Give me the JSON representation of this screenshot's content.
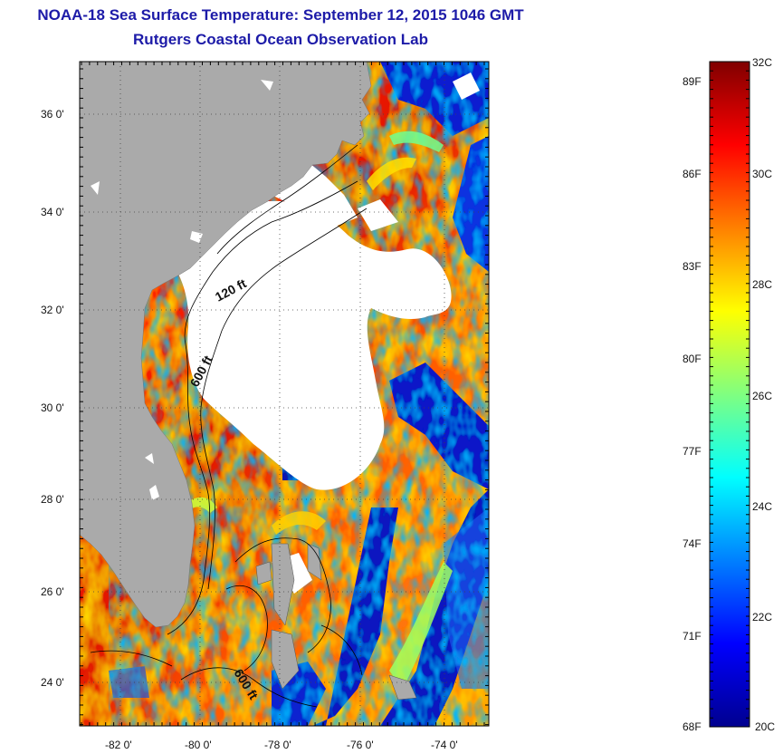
{
  "header": {
    "title": "NOAA-18 Sea Surface Temperature:  September 12, 2015 1046 GMT",
    "subtitle": "Rutgers Coastal Ocean Observation Lab"
  },
  "map": {
    "region": "US Southeast coast and Bahamas",
    "lon_range": [
      -83,
      -73
    ],
    "lat_range": [
      23,
      37
    ],
    "lat_ticks": [
      {
        "value": 36,
        "label": "36 0'"
      },
      {
        "value": 34,
        "label": "34 0'"
      },
      {
        "value": 32,
        "label": "32 0'"
      },
      {
        "value": 30,
        "label": "30 0'"
      },
      {
        "value": 28,
        "label": "28 0'"
      },
      {
        "value": 26,
        "label": "26 0'"
      },
      {
        "value": 24,
        "label": "24 0'"
      }
    ],
    "lon_ticks": [
      {
        "value": -82,
        "label": "-82 0'"
      },
      {
        "value": -80,
        "label": "-80 0'"
      },
      {
        "value": -78,
        "label": "-78 0'"
      },
      {
        "value": -76,
        "label": "-76 0'"
      },
      {
        "value": -74,
        "label": "-74 0'"
      }
    ],
    "grid": "dotted",
    "contour_labels": [
      {
        "text": "120 ft",
        "rotate": -28
      },
      {
        "text": "600 ft",
        "rotate": -62
      },
      {
        "text": "600 ft",
        "rotate": 58
      }
    ],
    "colors": {
      "land": "#aaaaaa",
      "cloud": "#ffffff",
      "frame": "#000000"
    }
  },
  "colorbar": {
    "min_c": 20,
    "max_c": 32,
    "colors": [
      "#00008f",
      "#0000ff",
      "#0080ff",
      "#00ffff",
      "#80ff80",
      "#ffff00",
      "#ff8000",
      "#ff0000",
      "#800000"
    ],
    "celsius_ticks": [
      {
        "value": 32,
        "label": "32C"
      },
      {
        "value": 30,
        "label": "30C"
      },
      {
        "value": 28,
        "label": "28C"
      },
      {
        "value": 26,
        "label": "26C"
      },
      {
        "value": 24,
        "label": "24C"
      },
      {
        "value": 22,
        "label": "22C"
      },
      {
        "value": 20,
        "label": "20C"
      }
    ],
    "fahrenheit_ticks": [
      {
        "value": 89,
        "label": "89F"
      },
      {
        "value": 86,
        "label": "86F"
      },
      {
        "value": 83,
        "label": "83F"
      },
      {
        "value": 80,
        "label": "80F"
      },
      {
        "value": 77,
        "label": "77F"
      },
      {
        "value": 74,
        "label": "74F"
      },
      {
        "value": 71,
        "label": "71F"
      },
      {
        "value": 68,
        "label": "68F"
      }
    ]
  }
}
